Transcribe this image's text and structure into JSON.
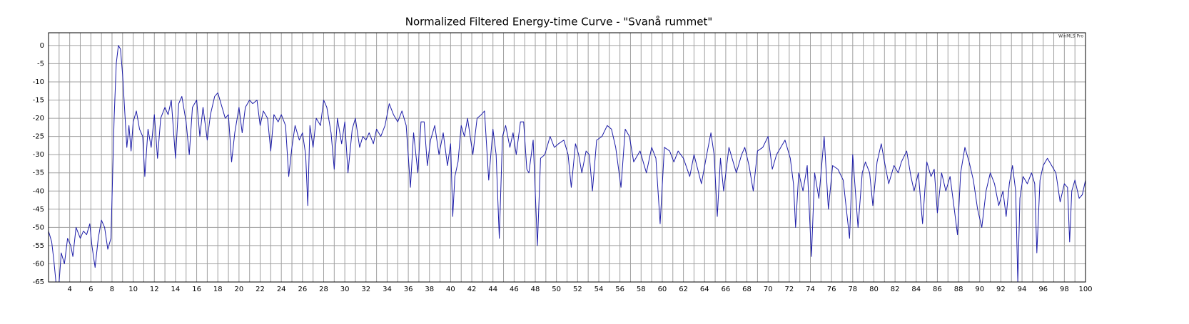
{
  "chart_data": {
    "type": "line",
    "title": "Normalized Filtered Energy-time Curve - \"Svanå rummet\"",
    "watermark": "WinMLS Pro",
    "x": [
      2.0,
      2.3,
      2.5,
      2.7,
      3.0,
      3.2,
      3.5,
      3.8,
      4.1,
      4.3,
      4.6,
      5.0,
      5.3,
      5.6,
      5.9,
      6.1,
      6.4,
      6.7,
      7.0,
      7.3,
      7.6,
      7.9,
      8.0,
      8.2,
      8.4,
      8.6,
      8.8,
      9.0,
      9.2,
      9.4,
      9.6,
      9.8,
      10.0,
      10.3,
      10.6,
      10.9,
      11.1,
      11.4,
      11.7,
      12.0,
      12.3,
      12.6,
      13.0,
      13.3,
      13.6,
      14.0,
      14.3,
      14.6,
      15.0,
      15.3,
      15.6,
      16.0,
      16.3,
      16.6,
      17.0,
      17.3,
      17.7,
      18.0,
      18.3,
      18.7,
      19.0,
      19.3,
      19.6,
      20.0,
      20.3,
      20.6,
      21.0,
      21.3,
      21.7,
      22.0,
      22.3,
      22.7,
      23.0,
      23.3,
      23.7,
      24.0,
      24.4,
      24.7,
      25.0,
      25.3,
      25.7,
      26.0,
      26.3,
      26.5,
      26.7,
      27.0,
      27.3,
      27.7,
      28.0,
      28.3,
      28.7,
      29.0,
      29.3,
      29.7,
      30.0,
      30.3,
      30.7,
      31.0,
      31.4,
      31.7,
      32.0,
      32.3,
      32.7,
      33.0,
      33.4,
      33.8,
      34.2,
      34.6,
      35.0,
      35.4,
      35.8,
      36.2,
      36.5,
      36.9,
      37.2,
      37.5,
      37.8,
      38.1,
      38.5,
      38.9,
      39.3,
      39.7,
      40.0,
      40.2,
      40.4,
      40.7,
      41.0,
      41.3,
      41.6,
      42.1,
      42.5,
      42.9,
      43.2,
      43.6,
      44.0,
      44.3,
      44.6,
      44.9,
      45.2,
      45.6,
      45.9,
      46.2,
      46.6,
      46.9,
      47.2,
      47.4,
      47.8,
      48.2,
      48.5,
      48.9,
      49.4,
      49.8,
      50.2,
      50.7,
      51.1,
      51.4,
      51.8,
      52.1,
      52.4,
      52.8,
      53.1,
      53.4,
      53.8,
      54.3,
      54.8,
      55.2,
      55.6,
      56.1,
      56.5,
      56.9,
      57.3,
      57.9,
      58.5,
      59.0,
      59.4,
      59.8,
      60.2,
      60.7,
      61.1,
      61.5,
      62.0,
      62.6,
      63.0,
      63.7,
      64.2,
      64.6,
      64.9,
      65.2,
      65.5,
      65.8,
      66.3,
      67.0,
      67.5,
      67.8,
      68.2,
      68.6,
      69.0,
      69.5,
      70.0,
      70.4,
      70.8,
      71.2,
      71.6,
      72.1,
      72.4,
      72.6,
      72.9,
      73.3,
      73.7,
      74.1,
      74.4,
      74.8,
      75.3,
      75.7,
      76.1,
      76.6,
      77.1,
      77.7,
      78.0,
      78.5,
      78.9,
      79.2,
      79.6,
      79.9,
      80.3,
      80.7,
      81.0,
      81.4,
      81.9,
      82.3,
      82.6,
      83.1,
      83.5,
      83.8,
      84.2,
      84.6,
      85.0,
      85.4,
      85.7,
      86.0,
      86.4,
      86.8,
      87.2,
      87.6,
      87.9,
      88.2,
      88.6,
      89.0,
      89.4,
      89.8,
      90.2,
      90.6,
      91.0,
      91.4,
      91.8,
      92.2,
      92.5,
      92.8,
      93.1,
      93.4,
      93.6,
      93.8,
      94.1,
      94.5,
      94.9,
      95.2,
      95.4,
      95.7,
      96.0,
      96.4,
      96.8,
      97.2,
      97.6,
      98.0,
      98.3,
      98.5,
      98.7,
      99.0,
      99.4,
      99.7,
      100
    ],
    "series": [
      {
        "color": "#1c1ca8",
        "values": [
          -51,
          -54,
          -59,
          -65,
          -65,
          -57,
          -60,
          -53,
          -55,
          -58,
          -50,
          -53,
          -51,
          -52,
          -49,
          -55,
          -61,
          -53,
          -48,
          -50,
          -56,
          -53,
          -42,
          -20,
          -5,
          0,
          -1,
          -8,
          -18,
          -28,
          -22,
          -29,
          -21,
          -18,
          -23,
          -25,
          -36,
          -23,
          -28,
          -19,
          -31,
          -20,
          -17,
          -19,
          -15,
          -31,
          -16,
          -14,
          -21,
          -30,
          -17,
          -15,
          -25,
          -17,
          -26,
          -19,
          -14,
          -13,
          -16,
          -20,
          -19,
          -32,
          -24,
          -17,
          -24,
          -17,
          -15,
          -16,
          -15,
          -22,
          -18,
          -20,
          -29,
          -19,
          -21,
          -19,
          -22,
          -36,
          -28,
          -22,
          -26,
          -24,
          -30,
          -44,
          -22,
          -28,
          -20,
          -22,
          -15,
          -17,
          -24,
          -34,
          -20,
          -27,
          -21,
          -35,
          -23,
          -20,
          -28,
          -25,
          -26,
          -24,
          -27,
          -23,
          -25,
          -22,
          -16,
          -19,
          -21,
          -18,
          -22,
          -39,
          -24,
          -35,
          -21,
          -21,
          -33,
          -26,
          -22,
          -30,
          -24,
          -33,
          -27,
          -47,
          -36,
          -32,
          -22,
          -25,
          -20,
          -30,
          -20,
          -19,
          -18,
          -37,
          -23,
          -30,
          -53,
          -25,
          -22,
          -28,
          -24,
          -30,
          -21,
          -21,
          -34,
          -35,
          -26,
          -55,
          -31,
          -30,
          -25,
          -28,
          -27,
          -26,
          -30,
          -39,
          -27,
          -30,
          -35,
          -29,
          -30,
          -40,
          -26,
          -25,
          -22,
          -23,
          -28,
          -39,
          -23,
          -25,
          -32,
          -29,
          -35,
          -28,
          -31,
          -49,
          -28,
          -29,
          -32,
          -29,
          -31,
          -36,
          -30,
          -38,
          -30,
          -24,
          -30,
          -47,
          -31,
          -40,
          -28,
          -35,
          -30,
          -28,
          -33,
          -40,
          -29,
          -28,
          -25,
          -34,
          -30,
          -28,
          -26,
          -31,
          -38,
          -50,
          -35,
          -40,
          -33,
          -58,
          -35,
          -42,
          -25,
          -45,
          -33,
          -34,
          -37,
          -53,
          -30,
          -50,
          -35,
          -32,
          -35,
          -44,
          -32,
          -27,
          -32,
          -38,
          -33,
          -35,
          -32,
          -29,
          -36,
          -40,
          -35,
          -49,
          -32,
          -36,
          -34,
          -46,
          -35,
          -40,
          -36,
          -45,
          -52,
          -35,
          -28,
          -32,
          -37,
          -45,
          -50,
          -40,
          -35,
          -38,
          -44,
          -40,
          -47,
          -38,
          -33,
          -40,
          -65,
          -42,
          -36,
          -38,
          -35,
          -38,
          -57,
          -37,
          -33,
          -31,
          -33,
          -35,
          -43,
          -38,
          -39,
          -54,
          -40,
          -37,
          -42,
          -41,
          -37
        ]
      }
    ],
    "xlim": [
      2,
      100
    ],
    "ylim": [
      -65,
      3.5
    ],
    "xticks": [
      4,
      6,
      8,
      10,
      12,
      14,
      16,
      18,
      20,
      22,
      24,
      26,
      28,
      30,
      32,
      34,
      36,
      38,
      40,
      42,
      44,
      46,
      48,
      50,
      52,
      54,
      56,
      58,
      60,
      62,
      64,
      66,
      68,
      70,
      72,
      74,
      76,
      78,
      80,
      82,
      84,
      86,
      88,
      90,
      92,
      94,
      96,
      98,
      100
    ],
    "xminorticks": [
      3,
      5,
      7,
      9,
      11,
      13,
      15,
      17,
      19,
      21,
      23,
      25,
      27,
      29,
      31,
      33,
      35,
      37,
      39,
      41,
      43,
      45,
      47,
      49,
      51,
      53,
      55,
      57,
      59,
      61,
      63,
      65,
      67,
      69,
      71,
      73,
      75,
      77,
      79,
      81,
      83,
      85,
      87,
      89,
      91,
      93,
      95,
      97,
      99
    ],
    "yticks": [
      0,
      -5,
      -10,
      -15,
      -20,
      -25,
      -30,
      -35,
      -40,
      -45,
      -50,
      -55,
      -60,
      -65
    ],
    "grid": true
  }
}
